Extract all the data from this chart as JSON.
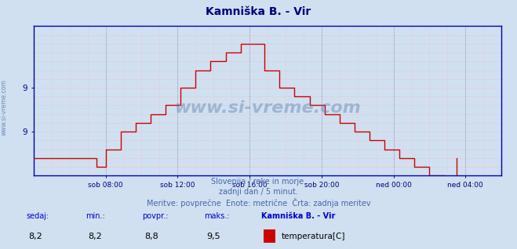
{
  "title": "Kamniška B. - Vir",
  "title_color": "#000080",
  "bg_color": "#d0e0f0",
  "plot_bg_color": "#d0e0f0",
  "line_color": "#cc0000",
  "line_width": 1.0,
  "axis_color": "#0000bb",
  "grid_color_h": "#ffb0b0",
  "grid_color_v": "#ffb0b0",
  "grid_color_major_v": "#8888cc",
  "ylabel_color": "#000080",
  "xlabel_color": "#000080",
  "watermark": "www.si-vreme.com",
  "watermark_color": "#5577aa",
  "subtitle_line1": "Slovenija / reke in morje.",
  "subtitle_line2": "zadnji dan / 5 minut.",
  "subtitle_line3": "Meritve: povprečne  Enote: metrične  Črta: zadnja meritev",
  "subtitle_color": "#4466aa",
  "stat_label_color": "#0000cc",
  "stat_value_color": "#000000",
  "legend_title_color": "#000066",
  "legend_color": "#cc0000",
  "ylim": [
    8.0,
    9.7
  ],
  "ytick_vals": [
    8.5,
    9.0
  ],
  "ytick_labels": [
    "9",
    "9"
  ],
  "xlim": [
    0,
    312
  ],
  "x_tick_positions": [
    48,
    96,
    144,
    192,
    240,
    288
  ],
  "x_tick_labels": [
    "sob 08:00",
    "sob 12:00",
    "sob 16:00",
    "sob 20:00",
    "ned 00:00",
    "ned 04:00"
  ],
  "temperature_data": [
    8.2,
    8.2,
    8.2,
    8.2,
    8.2,
    8.2,
    8.2,
    8.2,
    8.2,
    8.2,
    8.2,
    8.2,
    8.2,
    8.2,
    8.2,
    8.2,
    8.2,
    8.2,
    8.2,
    8.2,
    8.2,
    8.2,
    8.2,
    8.2,
    8.2,
    8.2,
    8.2,
    8.2,
    8.2,
    8.2,
    8.2,
    8.2,
    8.2,
    8.2,
    8.2,
    8.2,
    8.2,
    8.2,
    8.2,
    8.2,
    8.2,
    8.2,
    8.1,
    8.1,
    8.1,
    8.1,
    8.1,
    8.1,
    8.3,
    8.3,
    8.3,
    8.3,
    8.3,
    8.3,
    8.3,
    8.3,
    8.3,
    8.3,
    8.5,
    8.5,
    8.5,
    8.5,
    8.5,
    8.5,
    8.5,
    8.5,
    8.5,
    8.5,
    8.6,
    8.6,
    8.6,
    8.6,
    8.6,
    8.6,
    8.6,
    8.6,
    8.6,
    8.6,
    8.7,
    8.7,
    8.7,
    8.7,
    8.7,
    8.7,
    8.7,
    8.7,
    8.7,
    8.7,
    8.8,
    8.8,
    8.8,
    8.8,
    8.8,
    8.8,
    8.8,
    8.8,
    8.8,
    8.8,
    9.0,
    9.0,
    9.0,
    9.0,
    9.0,
    9.0,
    9.0,
    9.0,
    9.0,
    9.0,
    9.2,
    9.2,
    9.2,
    9.2,
    9.2,
    9.2,
    9.2,
    9.2,
    9.2,
    9.2,
    9.3,
    9.3,
    9.3,
    9.3,
    9.3,
    9.3,
    9.3,
    9.3,
    9.3,
    9.3,
    9.4,
    9.4,
    9.4,
    9.4,
    9.4,
    9.4,
    9.4,
    9.4,
    9.4,
    9.4,
    9.5,
    9.5,
    9.5,
    9.5,
    9.5,
    9.5,
    9.5,
    9.5,
    9.5,
    9.5,
    9.5,
    9.5,
    9.5,
    9.5,
    9.5,
    9.5,
    9.2,
    9.2,
    9.2,
    9.2,
    9.2,
    9.2,
    9.2,
    9.2,
    9.2,
    9.2,
    9.0,
    9.0,
    9.0,
    9.0,
    9.0,
    9.0,
    9.0,
    9.0,
    9.0,
    9.0,
    8.9,
    8.9,
    8.9,
    8.9,
    8.9,
    8.9,
    8.9,
    8.9,
    8.9,
    8.9,
    8.8,
    8.8,
    8.8,
    8.8,
    8.8,
    8.8,
    8.8,
    8.8,
    8.8,
    8.8,
    8.7,
    8.7,
    8.7,
    8.7,
    8.7,
    8.7,
    8.7,
    8.7,
    8.7,
    8.7,
    8.6,
    8.6,
    8.6,
    8.6,
    8.6,
    8.6,
    8.6,
    8.6,
    8.6,
    8.6,
    8.5,
    8.5,
    8.5,
    8.5,
    8.5,
    8.5,
    8.5,
    8.5,
    8.5,
    8.5,
    8.4,
    8.4,
    8.4,
    8.4,
    8.4,
    8.4,
    8.4,
    8.4,
    8.4,
    8.4,
    8.3,
    8.3,
    8.3,
    8.3,
    8.3,
    8.3,
    8.3,
    8.3,
    8.3,
    8.3,
    8.2,
    8.2,
    8.2,
    8.2,
    8.2,
    8.2,
    8.2,
    8.2,
    8.2,
    8.2,
    8.1,
    8.1,
    8.1,
    8.1,
    8.1,
    8.1,
    8.1,
    8.1,
    8.1,
    8.1,
    8.0,
    8.0,
    8.0,
    8.0,
    8.0,
    8.0,
    8.0,
    8.0,
    8.0,
    8.0,
    7.9,
    7.9,
    7.9,
    7.9,
    7.9,
    7.9,
    7.9,
    7.9,
    8.2
  ]
}
